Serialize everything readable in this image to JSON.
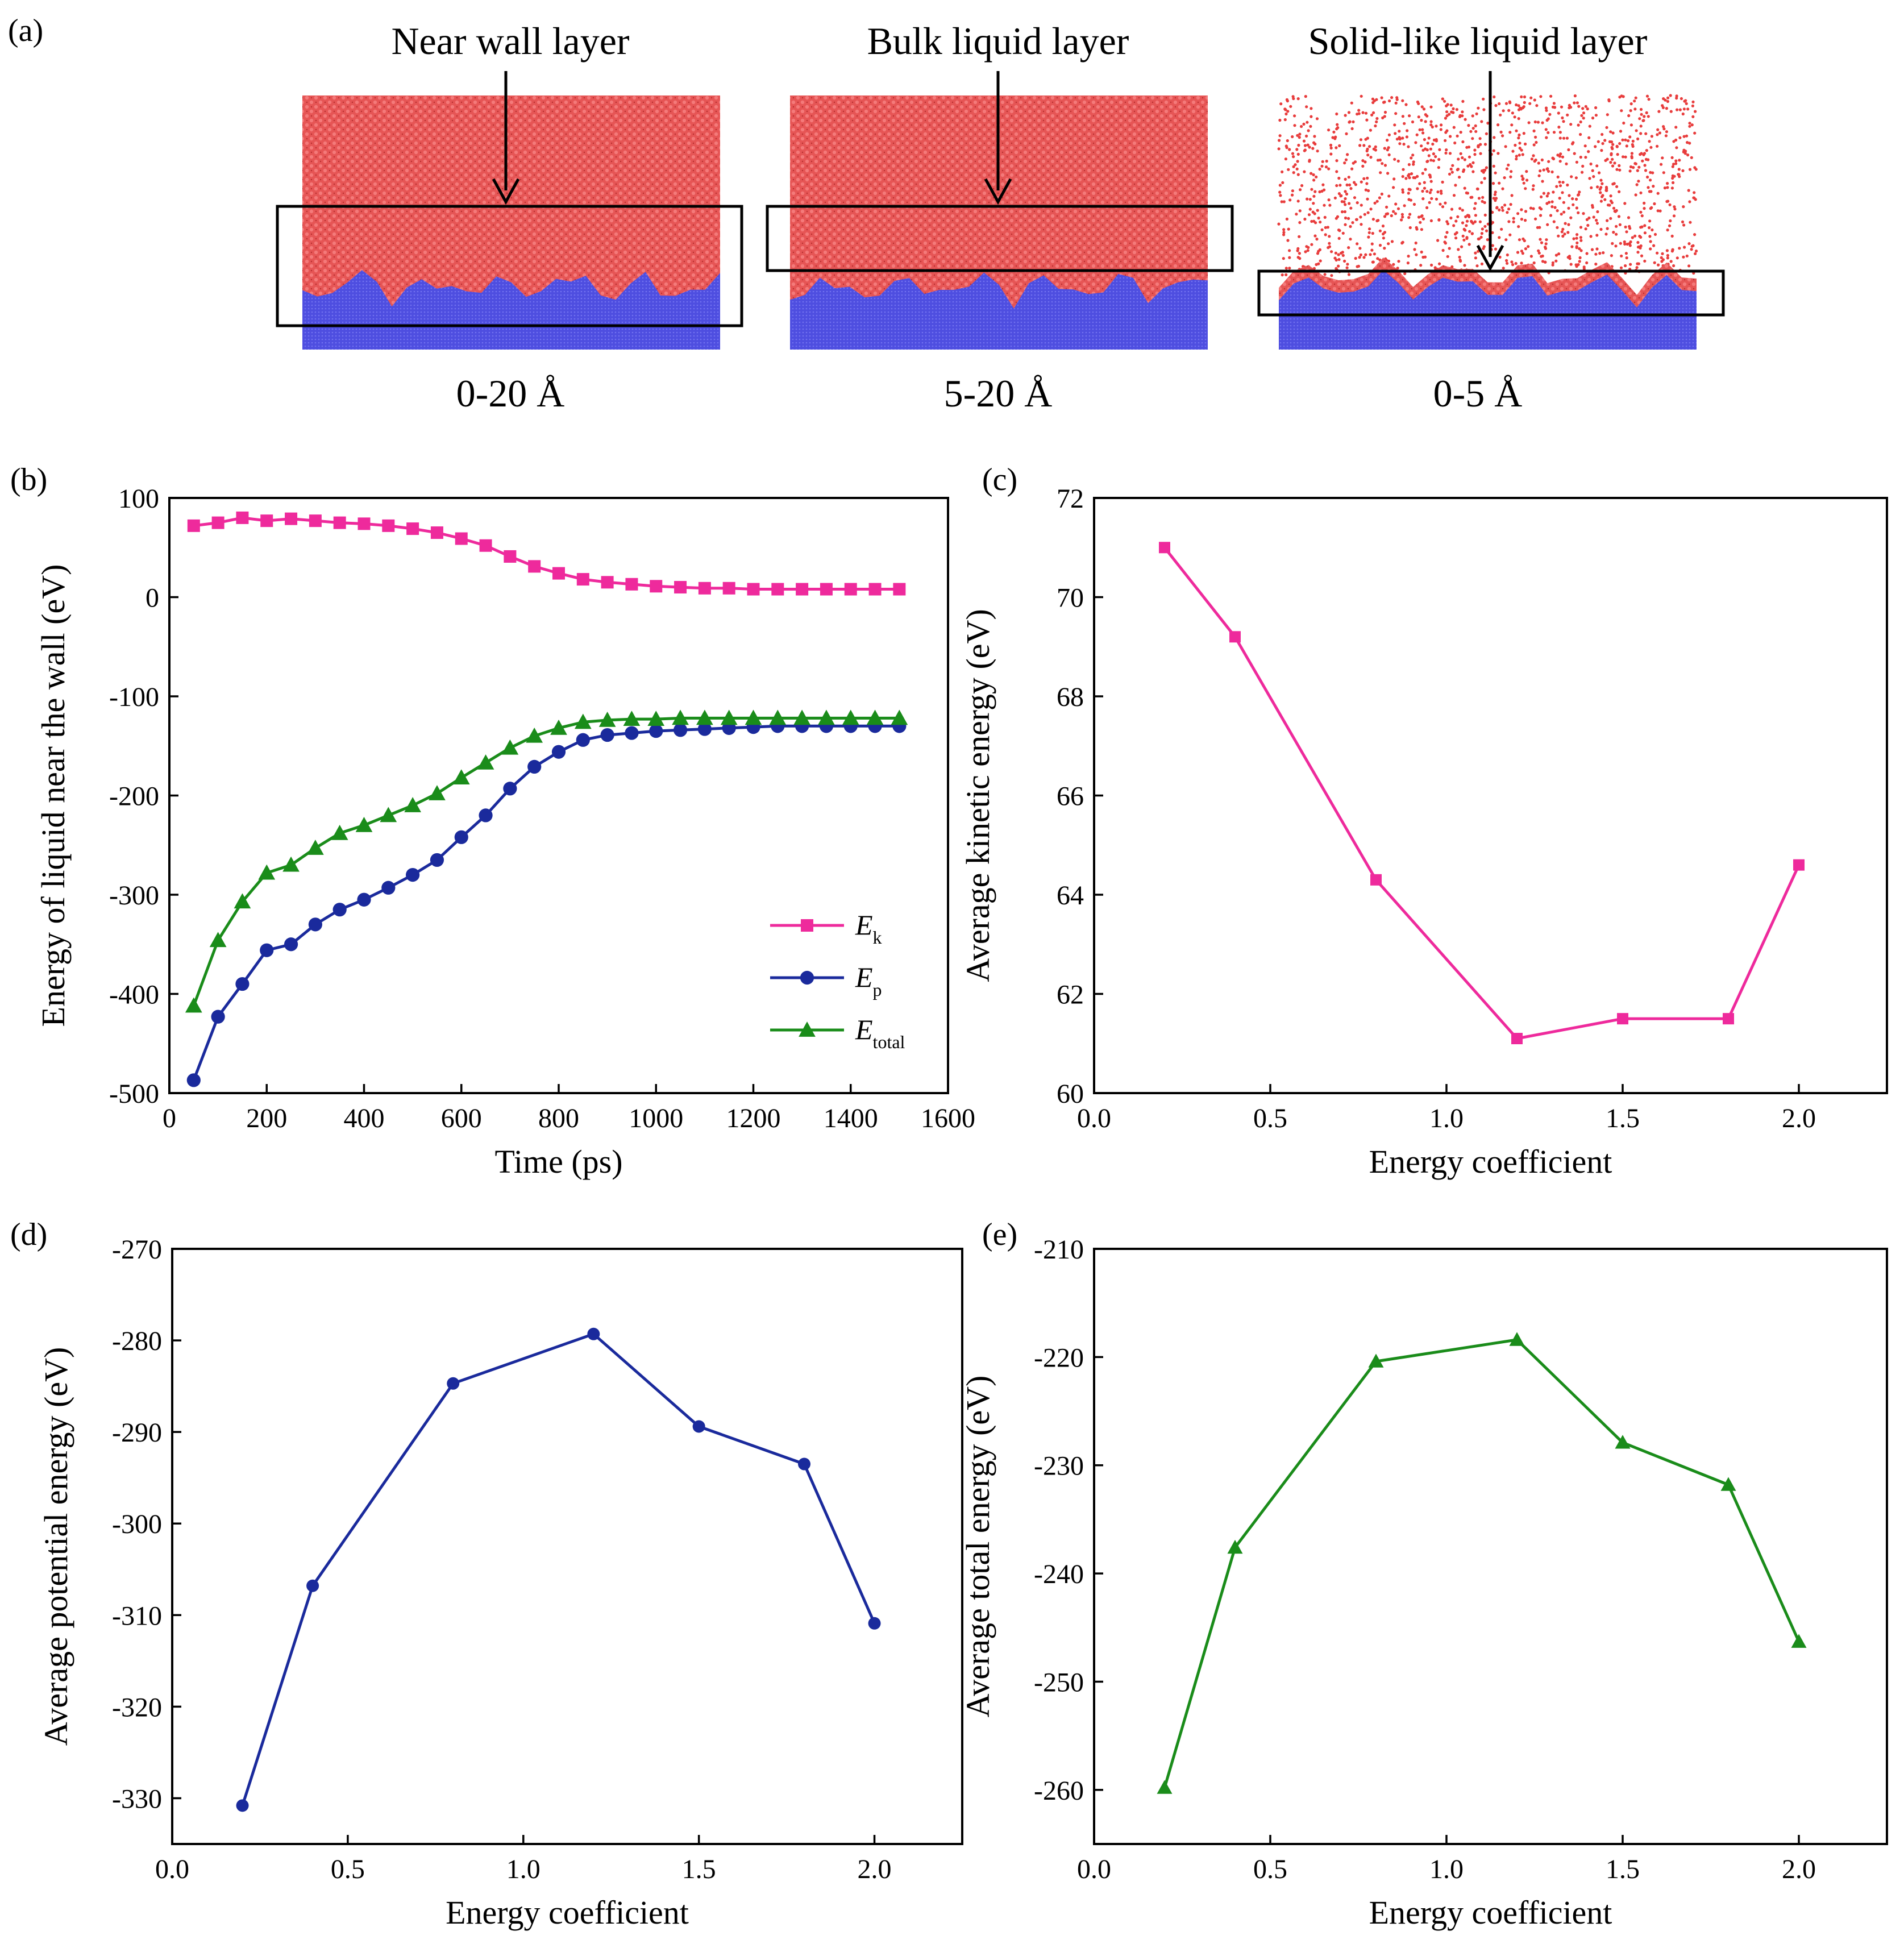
{
  "panel_a": {
    "label": "(a)",
    "views": [
      {
        "title": "Near wall layer",
        "range": "0-20 Å"
      },
      {
        "title": "Bulk liquid layer",
        "range": "5-20 Å"
      },
      {
        "title": "Solid-like liquid layer",
        "range": "0-5 Å"
      }
    ],
    "colors": {
      "liquid": "#e84b4b",
      "liquid_dark": "#b82828",
      "solid": "#5050dd",
      "sparse_dot": "#e83c3c"
    }
  },
  "chart_data": [
    {
      "id": "b",
      "panel_label": "(b)",
      "type": "line",
      "xlabel": "Time (ps)",
      "ylabel": "Energy of liquid near the wall (eV)",
      "xlim": [
        0,
        1600
      ],
      "ylim": [
        -500,
        100
      ],
      "xticks": [
        0,
        200,
        400,
        600,
        800,
        1000,
        1200,
        1400,
        1600
      ],
      "yticks": [
        -500,
        -400,
        -300,
        -200,
        -100,
        0,
        100
      ],
      "legend_position": "lower-right",
      "x": [
        50,
        100,
        150,
        200,
        250,
        300,
        350,
        400,
        450,
        500,
        550,
        600,
        650,
        700,
        750,
        800,
        850,
        900,
        950,
        1000,
        1050,
        1100,
        1150,
        1200,
        1250,
        1300,
        1350,
        1400,
        1450,
        1500
      ],
      "series": [
        {
          "name": "E",
          "sub": "k",
          "color": "#ee2a9c",
          "marker": "square",
          "values": [
            72,
            75,
            80,
            77,
            79,
            77,
            75,
            74,
            72,
            69,
            65,
            59,
            52,
            41,
            31,
            24,
            18,
            15,
            13,
            11,
            10,
            9,
            9,
            8,
            8,
            8,
            8,
            8,
            8,
            8
          ]
        },
        {
          "name": "E",
          "sub": "p",
          "color": "#1a2a9c",
          "marker": "circle",
          "values": [
            -487,
            -423,
            -390,
            -356,
            -350,
            -330,
            -315,
            -305,
            -293,
            -280,
            -265,
            -242,
            -220,
            -193,
            -171,
            -156,
            -144,
            -139,
            -137,
            -135,
            -134,
            -133,
            -132,
            -131,
            -130,
            -130,
            -130,
            -130,
            -130,
            -130
          ]
        },
        {
          "name": "E",
          "sub": "total",
          "color": "#1a8c1a",
          "marker": "triangle",
          "values": [
            -412,
            -346,
            -307,
            -278,
            -270,
            -253,
            -238,
            -230,
            -220,
            -210,
            -198,
            -182,
            -167,
            -152,
            -140,
            -132,
            -126,
            -124,
            -123,
            -123,
            -122,
            -122,
            -122,
            -122,
            -122,
            -122,
            -122,
            -122,
            -122,
            -122
          ]
        }
      ]
    },
    {
      "id": "c",
      "panel_label": "(c)",
      "type": "line",
      "xlabel": "Energy coefficient",
      "ylabel": "Average kinetic energy (eV)",
      "xlim": [
        0,
        2.25
      ],
      "ylim": [
        60,
        72
      ],
      "xticks": [
        0.0,
        0.5,
        1.0,
        1.5,
        2.0
      ],
      "xtick_labels": [
        "0.0",
        "0.5",
        "1.0",
        "1.5",
        "2.0"
      ],
      "yticks": [
        60,
        62,
        64,
        66,
        68,
        70,
        72
      ],
      "x": [
        0.2,
        0.4,
        0.8,
        1.2,
        1.5,
        1.8,
        2.0
      ],
      "series": [
        {
          "color": "#ee2a9c",
          "marker": "square",
          "values": [
            71.0,
            69.2,
            64.3,
            61.1,
            61.5,
            61.5,
            64.6
          ]
        }
      ]
    },
    {
      "id": "d",
      "panel_label": "(d)",
      "type": "line",
      "xlabel": "Energy coefficient",
      "ylabel": "Average potential energy (eV)",
      "xlim": [
        0,
        2.25
      ],
      "ylim": [
        -335,
        -270
      ],
      "xticks": [
        0.0,
        0.5,
        1.0,
        1.5,
        2.0
      ],
      "xtick_labels": [
        "0.0",
        "0.5",
        "1.0",
        "1.5",
        "2.0"
      ],
      "yticks": [
        -330,
        -320,
        -310,
        -300,
        -290,
        -280,
        -270
      ],
      "x": [
        0.2,
        0.4,
        0.8,
        1.2,
        1.5,
        1.8,
        2.0
      ],
      "series": [
        {
          "color": "#1a2a9c",
          "marker": "circle",
          "values": [
            -330.8,
            -306.8,
            -284.7,
            -279.3,
            -289.4,
            -293.5,
            -310.9
          ]
        }
      ]
    },
    {
      "id": "e",
      "panel_label": "(e)",
      "type": "line",
      "xlabel": "Energy coefficient",
      "ylabel": "Average total energy (eV)",
      "xlim": [
        0,
        2.25
      ],
      "ylim": [
        -265,
        -210
      ],
      "xticks": [
        0.0,
        0.5,
        1.0,
        1.5,
        2.0
      ],
      "xtick_labels": [
        "0.0",
        "0.5",
        "1.0",
        "1.5",
        "2.0"
      ],
      "yticks": [
        -260,
        -250,
        -240,
        -230,
        -220,
        -210
      ],
      "x": [
        0.2,
        0.4,
        0.8,
        1.2,
        1.5,
        1.8,
        2.0
      ],
      "series": [
        {
          "color": "#1a8c1a",
          "marker": "triangle",
          "values": [
            -259.8,
            -237.6,
            -220.4,
            -218.4,
            -227.9,
            -231.8,
            -246.3
          ]
        }
      ]
    }
  ]
}
